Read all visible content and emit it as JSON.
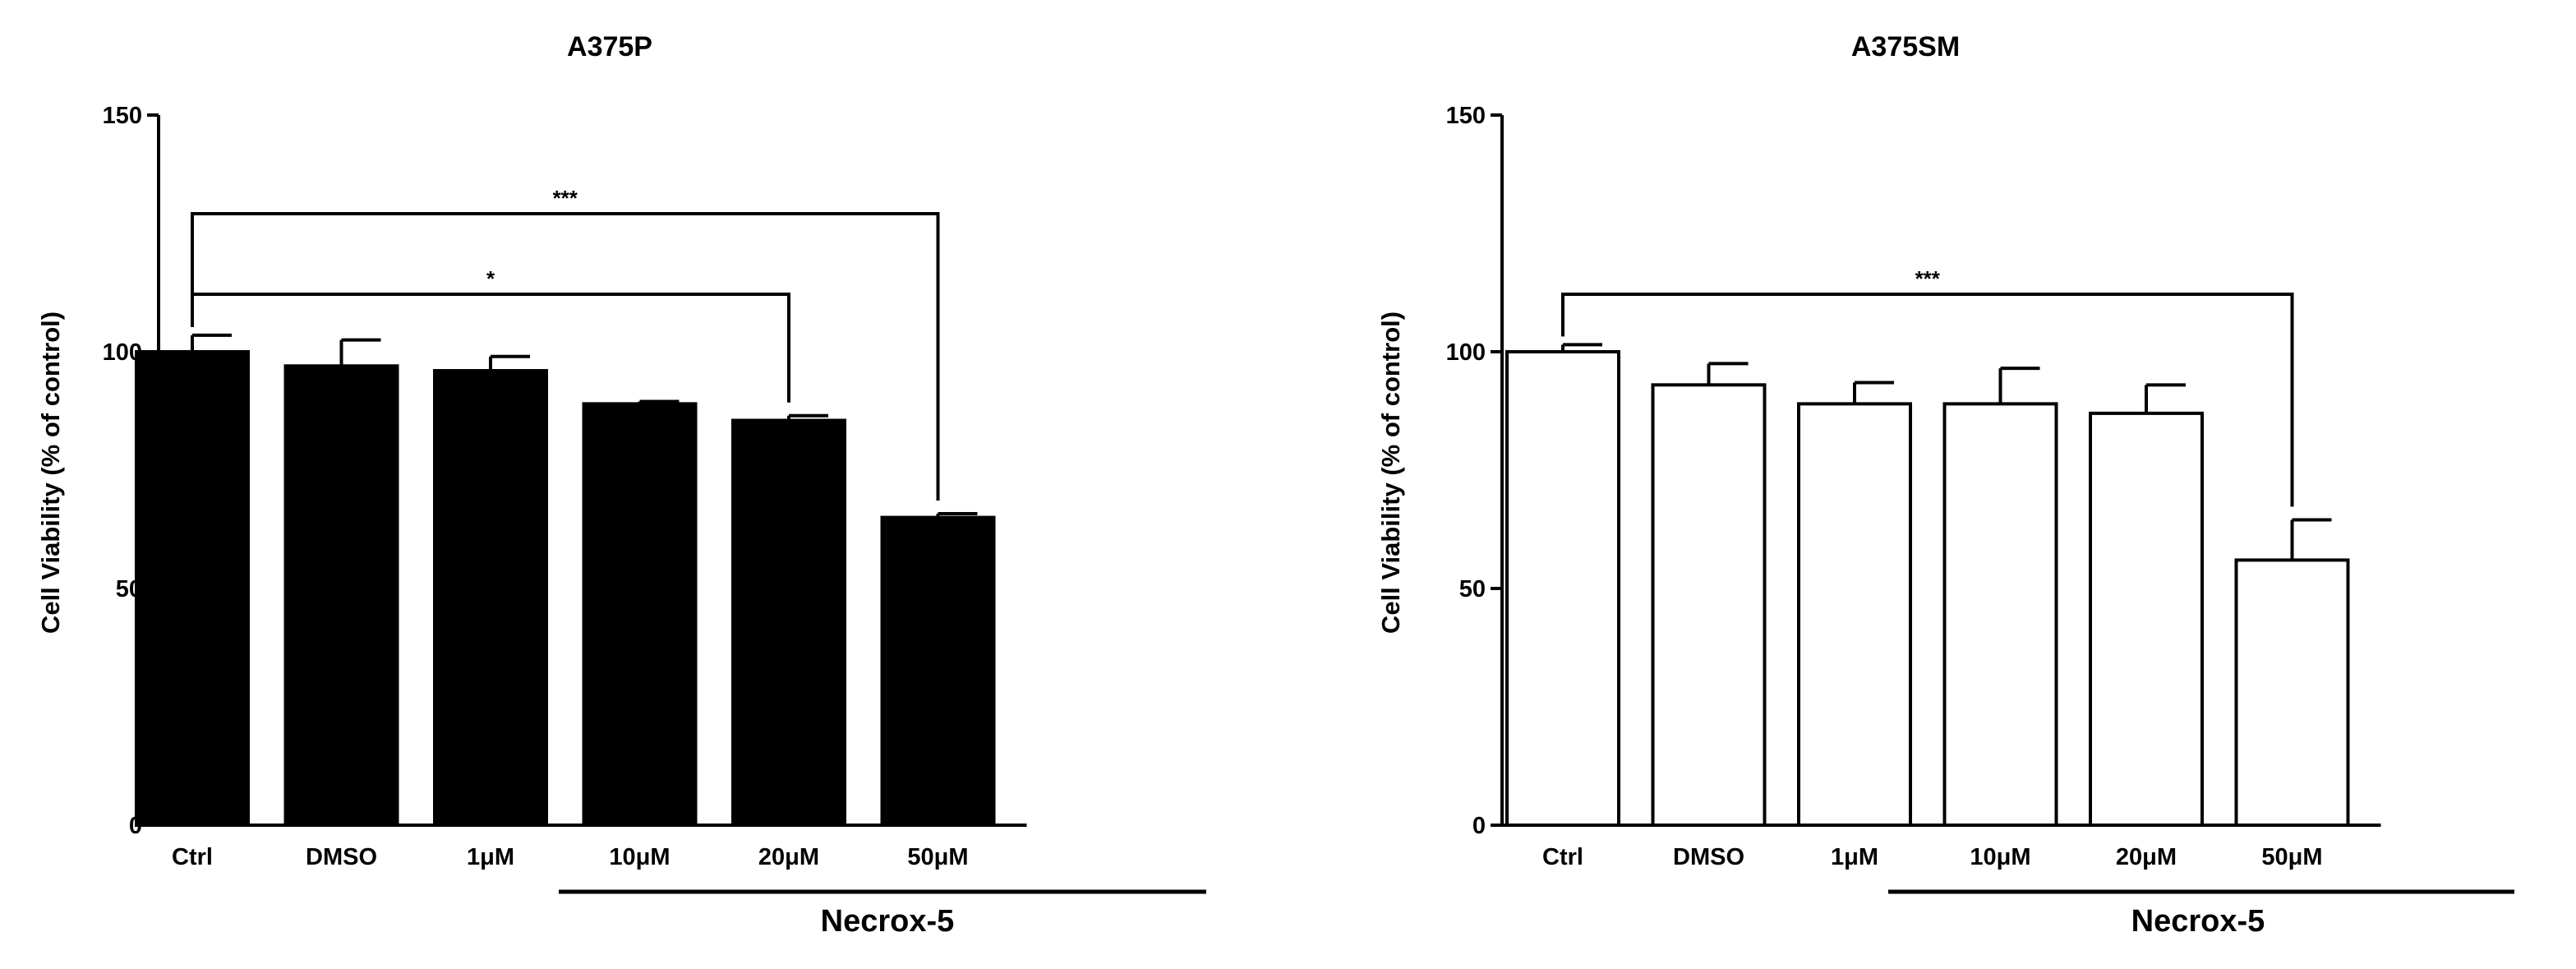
{
  "chart_data": [
    {
      "type": "bar",
      "title": "A375P",
      "ylabel": "Cell Viability (% of control)",
      "xlabel": "",
      "ylim": [
        0,
        150
      ],
      "yticks": [
        0,
        50,
        100,
        150
      ],
      "categories": [
        "Ctrl",
        "DMSO",
        "1μM",
        "10μM",
        "20μM",
        "50μM"
      ],
      "values": [
        100,
        97,
        96,
        89,
        85.5,
        65
      ],
      "errors": [
        3.5,
        5.5,
        3,
        0.5,
        1,
        0.8
      ],
      "bar_fill": "#000000",
      "group_label": "Necrox-5",
      "group_range": [
        2,
        5
      ],
      "significance": [
        {
          "from": 0,
          "to": 4,
          "label": "*"
        },
        {
          "from": 0,
          "to": 5,
          "label": "***"
        }
      ]
    },
    {
      "type": "bar",
      "title": "A375SM",
      "ylabel": "Cell Viability (% of control)",
      "xlabel": "",
      "ylim": [
        0,
        150
      ],
      "yticks": [
        0,
        50,
        100,
        150
      ],
      "categories": [
        "Ctrl",
        "DMSO",
        "1μM",
        "10μM",
        "20μM",
        "50μM"
      ],
      "values": [
        100,
        93,
        89,
        89,
        87,
        56
      ],
      "errors": [
        1.5,
        4.5,
        4.5,
        7.5,
        6,
        8.5
      ],
      "bar_fill": "#ffffff",
      "group_label": "Necrox-5",
      "group_range": [
        2,
        5
      ],
      "significance": [
        {
          "from": 0,
          "to": 5,
          "label": "***"
        }
      ]
    }
  ]
}
